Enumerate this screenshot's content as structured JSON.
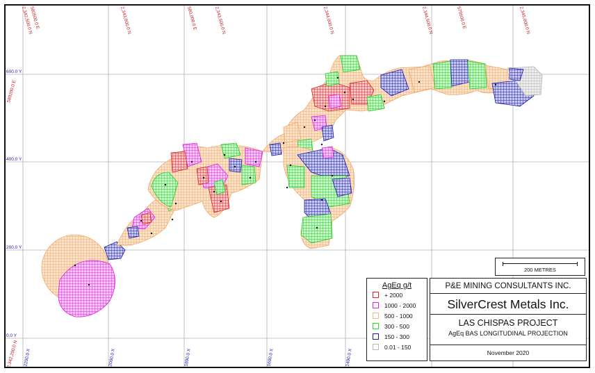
{
  "coord_labels": {
    "top": [
      "2,342,500.0 N",
      "580500.0 E",
      "2,343,000.0 N",
      "580,000.0 E",
      "2,343,500.0 N",
      "2,344,000.0 N",
      "2,344,500.0 N",
      "579500.0 E",
      "2,345,000.0 N"
    ],
    "left": [
      "600.0 Y",
      "400.0 Y",
      "200.0 Y",
      "0.0 Y",
      "580200.0 E",
      "2,342,200.0 N"
    ],
    "bottom": [
      "-2200.0 X",
      "-2000.0 X",
      "-1800.0 X",
      "-1600.0 X",
      "-1400.0 X"
    ]
  },
  "legend": {
    "title": "AgEq g/t",
    "items": [
      {
        "label": "+ 2000",
        "color": "#e02020"
      },
      {
        "label": "1000 - 2000",
        "color": "#e020e0"
      },
      {
        "label": "500 - 1000",
        "color": "#f5b980"
      },
      {
        "label": "300 - 500",
        "color": "#22dd22"
      },
      {
        "label": "150 - 300",
        "color": "#1a1aa8"
      },
      {
        "label": "0.01 - 150",
        "color": "#b8b8b8"
      }
    ]
  },
  "title_block": {
    "consultant": "P&E MINING CONSULTANTS INC.",
    "company": "SilverCrest Metals Inc.",
    "project": "LAS CHISPAS PROJECT",
    "subtitle": "AgEq BAS LONGITUDINAL PROJECTION",
    "date": "November 2020"
  },
  "scale_bar": {
    "label": "200 METRES"
  },
  "colors": {
    "grid": "#b0b0b0",
    "red_label": "#c02020",
    "blue_label": "#2020c0"
  }
}
